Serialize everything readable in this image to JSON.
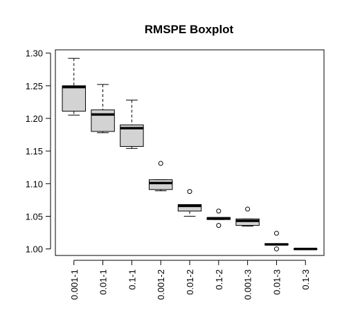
{
  "chart_data": {
    "type": "boxplot",
    "title": "RMSPE Boxplot",
    "xlabel": "",
    "ylabel": "",
    "ylim": [
      0.99,
      1.305
    ],
    "yticks": [
      "1.00",
      "1.05",
      "1.10",
      "1.15",
      "1.20",
      "1.25",
      "1.30"
    ],
    "categories": [
      "0.001-1",
      "0.01-1",
      "0.1-1",
      "0.001-2",
      "0.01-2",
      "0.1-2",
      "0.001-3",
      "0.01-3",
      "0.1-3"
    ],
    "boxes": [
      {
        "whisker_low": 1.205,
        "q1": 1.211,
        "median": 1.248,
        "q3": 1.25,
        "whisker_high": 1.292,
        "outliers": []
      },
      {
        "whisker_low": 1.178,
        "q1": 1.18,
        "median": 1.206,
        "q3": 1.213,
        "whisker_high": 1.252,
        "outliers": []
      },
      {
        "whisker_low": 1.154,
        "q1": 1.157,
        "median": 1.185,
        "q3": 1.19,
        "whisker_high": 1.228,
        "outliers": []
      },
      {
        "whisker_low": 1.089,
        "q1": 1.091,
        "median": 1.101,
        "q3": 1.106,
        "whisker_high": 1.106,
        "outliers": [
          1.131
        ]
      },
      {
        "whisker_low": 1.05,
        "q1": 1.058,
        "median": 1.066,
        "q3": 1.068,
        "whisker_high": 1.068,
        "outliers": [
          1.088
        ]
      },
      {
        "whisker_low": 1.045,
        "q1": 1.045,
        "median": 1.047,
        "q3": 1.048,
        "whisker_high": 1.048,
        "outliers": [
          1.058,
          1.036
        ]
      },
      {
        "whisker_low": 1.035,
        "q1": 1.036,
        "median": 1.043,
        "q3": 1.046,
        "whisker_high": 1.046,
        "outliers": [
          1.061
        ]
      },
      {
        "whisker_low": 1.006,
        "q1": 1.006,
        "median": 1.007,
        "q3": 1.008,
        "whisker_high": 1.008,
        "outliers": [
          1.024,
          1.0
        ]
      },
      {
        "whisker_low": 1.0,
        "q1": 1.0,
        "median": 1.0,
        "q3": 1.0,
        "whisker_high": 1.0,
        "outliers": []
      }
    ],
    "box_fill": "#d3d3d3",
    "grid": false,
    "legend": "none"
  }
}
